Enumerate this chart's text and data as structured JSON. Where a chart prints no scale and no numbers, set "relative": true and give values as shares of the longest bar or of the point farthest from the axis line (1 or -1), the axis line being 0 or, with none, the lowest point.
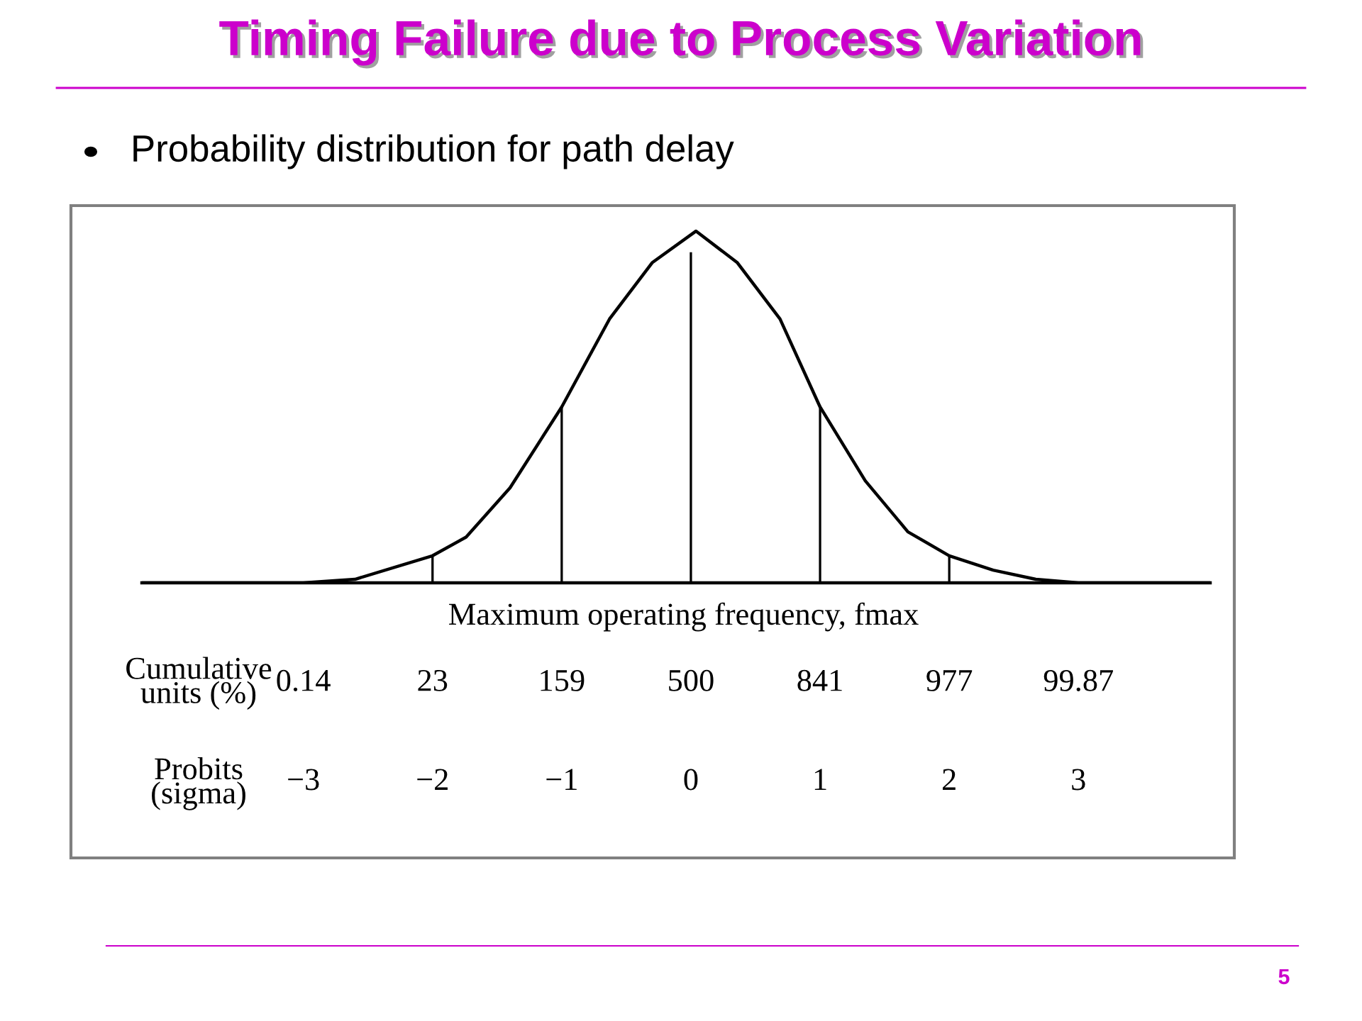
{
  "chart_data": {
    "type": "line",
    "title": "Timing Failure due to Process Variation",
    "subtitle": "Probability distribution for path delay",
    "xlabel": "Probits\n(sigma)",
    "relative": true,
    "xlim": [
      -4.25,
      4.02
    ],
    "xticks": [
      {
        "value": -3,
        "label": "−3"
      },
      {
        "value": -2,
        "label": "−2"
      },
      {
        "value": -1,
        "label": "−1"
      },
      0,
      1,
      2,
      3
    ],
    "annotations": [
      "Maximum operating frequency, fmax",
      "Cumulative\nunits (%)",
      "5",
      "0.14",
      "23",
      "159",
      "500",
      "841",
      "977",
      "99.87"
    ],
    "series": [
      {
        "color": "#000000",
        "x": [
          -4.25,
          -3.0,
          -2.6,
          -2.0,
          -1.74,
          -1.4,
          -1.0,
          -0.63,
          -0.3,
          0.04,
          0.36,
          0.69,
          1.0,
          1.35,
          1.68,
          2.0,
          2.34,
          2.67,
          3.0,
          4.02
        ],
        "values": [
          0,
          0,
          0.01,
          0.077,
          0.13,
          0.27,
          0.5,
          0.75,
          0.91,
          1,
          0.91,
          0.75,
          0.5,
          0.29,
          0.145,
          0.077,
          0.036,
          0.01,
          0,
          0
        ]
      },
      {
        "type": "bar",
        "color": "#000000",
        "x": [
          -2,
          -1,
          0,
          1,
          2
        ],
        "values": [
          0.077,
          0.5,
          0.94,
          0.5,
          0.077
        ]
      }
    ]
  }
}
